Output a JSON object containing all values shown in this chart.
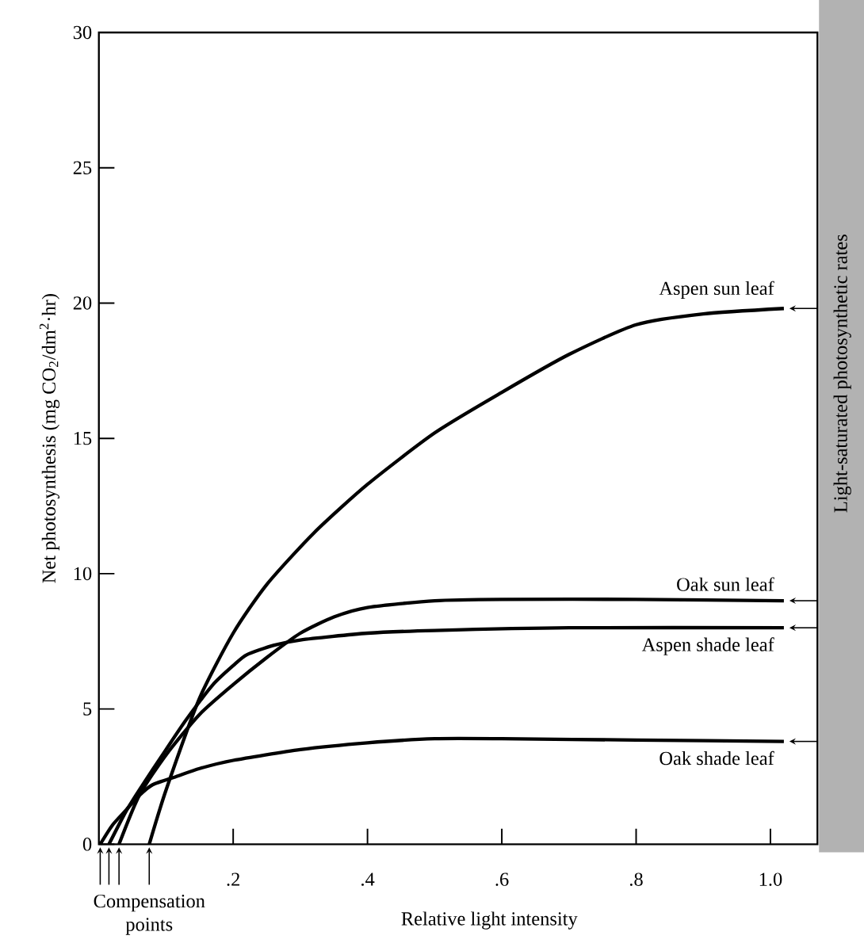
{
  "chart_data": {
    "type": "line",
    "xlabel": "Relative light intensity",
    "ylabel": "Net photosynthesis (mg CO$_{2}$/dm$^{2}$·hr)",
    "xlim": [
      0,
      1.07
    ],
    "ylim": [
      0,
      30
    ],
    "xticks": [
      {
        "value": 0.2,
        "label": ".2"
      },
      {
        "value": 0.4,
        "label": ".4"
      },
      {
        "value": 0.6,
        "label": ".6"
      },
      {
        "value": 0.8,
        "label": ".8"
      },
      {
        "value": 1.0,
        "label": "1.0"
      }
    ],
    "yticks": [
      0,
      5,
      10,
      15,
      20,
      25,
      30
    ],
    "color": "#000000",
    "grid": false,
    "legend": "right",
    "marker": "none",
    "line_style": "solid",
    "series": [
      {
        "name": "Aspen sun leaf",
        "x": [
          0.075,
          0.1,
          0.15,
          0.2,
          0.25,
          0.32,
          0.4,
          0.5,
          0.6,
          0.7,
          0.8,
          0.9,
          1.02
        ],
        "values": [
          0,
          2.0,
          5.4,
          7.8,
          9.6,
          11.5,
          13.3,
          15.2,
          16.7,
          18.1,
          19.2,
          19.6,
          19.8
        ]
      },
      {
        "name": "Oak sun leaf",
        "x": [
          0.03,
          0.06,
          0.1,
          0.15,
          0.2,
          0.25,
          0.3,
          0.35,
          0.4,
          0.5,
          0.6,
          0.8,
          1.02
        ],
        "values": [
          0,
          1.8,
          3.3,
          4.8,
          5.9,
          6.9,
          7.8,
          8.4,
          8.75,
          9.0,
          9.05,
          9.05,
          9.0
        ]
      },
      {
        "name": "Aspen shade leaf",
        "x": [
          0.015,
          0.04,
          0.06,
          0.1,
          0.13,
          0.17,
          0.2,
          0.22,
          0.26,
          0.3,
          0.4,
          0.5,
          0.7,
          1.02
        ],
        "values": [
          0,
          1.2,
          2.0,
          3.5,
          4.6,
          5.9,
          6.6,
          7.0,
          7.35,
          7.55,
          7.8,
          7.9,
          8.0,
          8.0
        ]
      },
      {
        "name": "Oak shade leaf",
        "x": [
          0.002,
          0.02,
          0.04,
          0.06,
          0.08,
          0.115,
          0.15,
          0.2,
          0.3,
          0.4,
          0.5,
          0.6,
          0.8,
          1.02
        ],
        "values": [
          0,
          0.7,
          1.25,
          1.8,
          2.2,
          2.5,
          2.8,
          3.1,
          3.5,
          3.75,
          3.9,
          3.9,
          3.85,
          3.8
        ]
      }
    ],
    "annotations": [
      "Compensation points",
      "Light-saturated photosynthetic rates"
    ]
  }
}
